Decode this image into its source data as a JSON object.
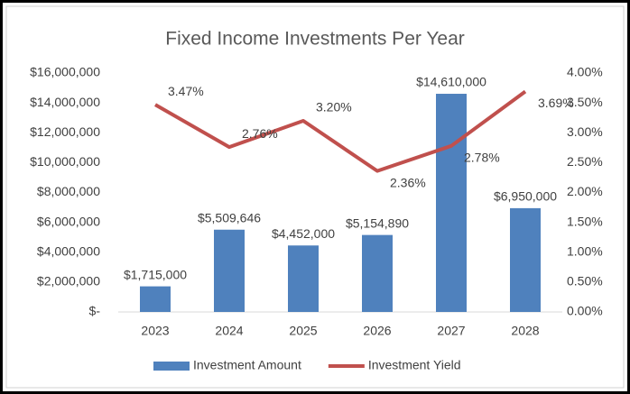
{
  "chart_data": {
    "type": "combo",
    "title": "Fixed Income Investments Per Year",
    "categories": [
      "2023",
      "2024",
      "2025",
      "2026",
      "2027",
      "2028"
    ],
    "series": [
      {
        "name": "Investment Amount",
        "type": "bar",
        "color": "#4f81bd",
        "values": [
          1715000,
          5509646,
          4452000,
          5154890,
          14610000,
          6950000
        ],
        "value_labels": [
          "$1,715,000",
          "$5,509,646",
          "$4,452,000",
          "$5,154,890",
          "$14,610,000",
          "$6,950,000"
        ]
      },
      {
        "name": "Investment Yield",
        "type": "line",
        "axis": "y2",
        "color": "#c0504d",
        "values": [
          3.47,
          2.76,
          3.2,
          2.36,
          2.78,
          3.69
        ],
        "value_labels": [
          "3.47%",
          "2.76%",
          "3.20%",
          "2.36%",
          "2.78%",
          "3.69%"
        ]
      }
    ],
    "ylim": [
      0,
      16000000
    ],
    "yticks": [
      {
        "value": 0,
        "label": "$-"
      },
      {
        "value": 2000000,
        "label": "$2,000,000"
      },
      {
        "value": 4000000,
        "label": "$4,000,000"
      },
      {
        "value": 6000000,
        "label": "$6,000,000"
      },
      {
        "value": 8000000,
        "label": "$8,000,000"
      },
      {
        "value": 10000000,
        "label": "$10,000,000"
      },
      {
        "value": 12000000,
        "label": "$12,000,000"
      },
      {
        "value": 14000000,
        "label": "$14,000,000"
      },
      {
        "value": 16000000,
        "label": "$16,000,000"
      }
    ],
    "y2lim": [
      0,
      4
    ],
    "y2ticks": [
      {
        "value": 0,
        "label": "0.00%"
      },
      {
        "value": 0.5,
        "label": "0.50%"
      },
      {
        "value": 1,
        "label": "1.00%"
      },
      {
        "value": 1.5,
        "label": "1.50%"
      },
      {
        "value": 2,
        "label": "2.00%"
      },
      {
        "value": 2.5,
        "label": "2.50%"
      },
      {
        "value": 3,
        "label": "3.00%"
      },
      {
        "value": 3.5,
        "label": "3.50%"
      },
      {
        "value": 4,
        "label": "4.00%"
      }
    ],
    "legend": "bottom"
  }
}
